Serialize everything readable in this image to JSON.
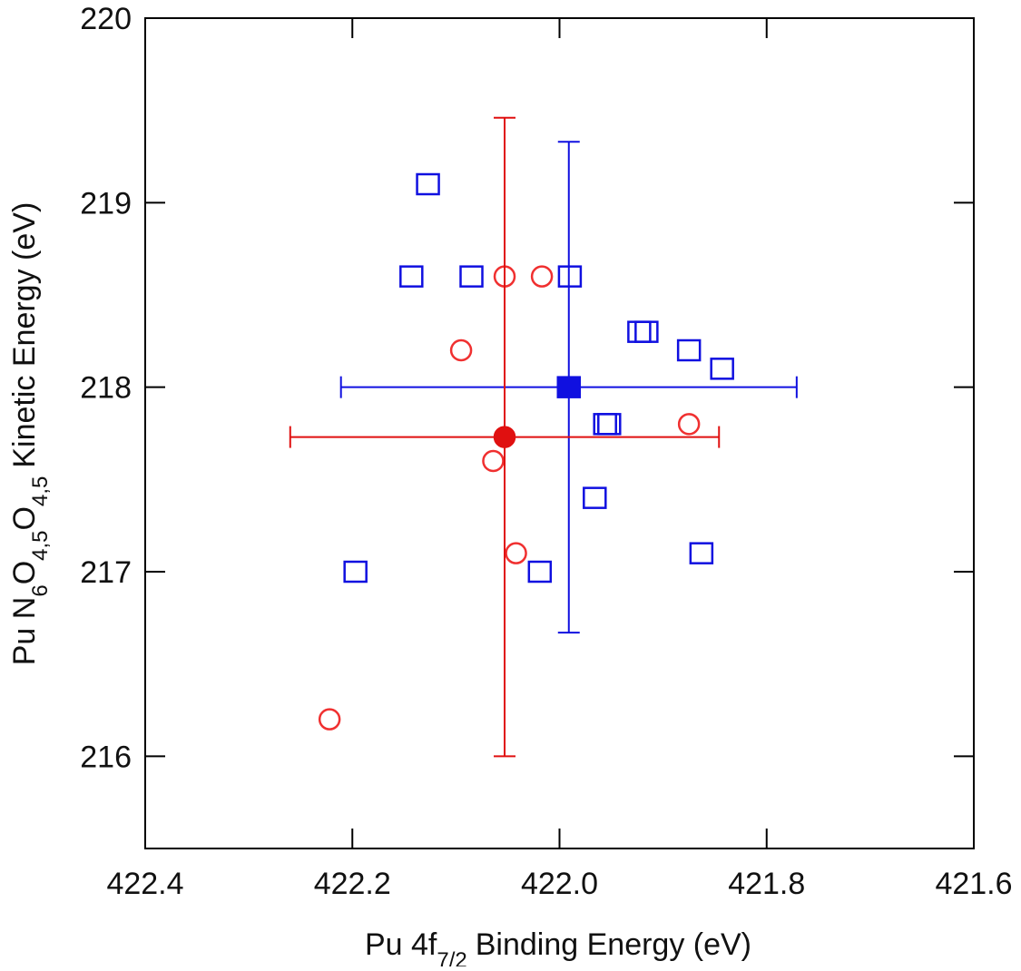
{
  "chart_data": {
    "type": "scatter",
    "xlabel": [
      {
        "text": "Pu 4f"
      },
      {
        "text": "7/2",
        "sub": true
      },
      {
        "text": "Binding Energy (eV)"
      }
    ],
    "ylabel": [
      {
        "text": "Pu N"
      },
      {
        "text": "6",
        "sub": true
      },
      {
        "text": "O"
      },
      {
        "text": "4,5",
        "sub": true
      },
      {
        "text": "O"
      },
      {
        "text": "4,5",
        "sub": true
      },
      {
        "text": "Kinetic Energy (eV)"
      }
    ],
    "xlim": [
      422.4,
      421.6
    ],
    "xticks": [
      422.4,
      422.2,
      {
        "value": 422,
        "label": "422.0"
      },
      421.8,
      421.6
    ],
    "ylim": [
      215.5,
      220
    ],
    "yticks": [
      216,
      217,
      218,
      219,
      220
    ],
    "series": [
      {
        "color": "#1010e0",
        "marker": "square",
        "filled": false,
        "x": [
          422.127,
          422.143,
          422.085,
          421.99,
          421.923,
          421.916,
          421.875,
          421.843,
          421.956,
          421.952,
          421.966,
          422.197,
          422.019,
          421.863
        ],
        "y": [
          219.1,
          218.6,
          218.6,
          218.6,
          218.3,
          218.3,
          218.2,
          218.1,
          217.8,
          217.8,
          217.4,
          217.0,
          217.0,
          217.1
        ]
      },
      {
        "color": "#f03030",
        "marker": "circle",
        "filled": false,
        "x": [
          422.053,
          422.017,
          422.095,
          421.875,
          422.064,
          422.042,
          422.222
        ],
        "y": [
          218.6,
          218.6,
          218.2,
          217.8,
          217.6,
          217.1,
          216.2
        ]
      },
      {
        "color": "#1010e0",
        "marker": "square",
        "filled": true,
        "x": [
          421.991
        ],
        "y": [
          218.0
        ],
        "x_error": [
          0.22
        ],
        "y_error": [
          1.33
        ]
      },
      {
        "color": "#e01010",
        "marker": "circle",
        "filled": true,
        "x": [
          422.053
        ],
        "y": [
          217.73
        ],
        "x_error": [
          0.207
        ],
        "y_error": [
          1.73
        ]
      }
    ]
  }
}
